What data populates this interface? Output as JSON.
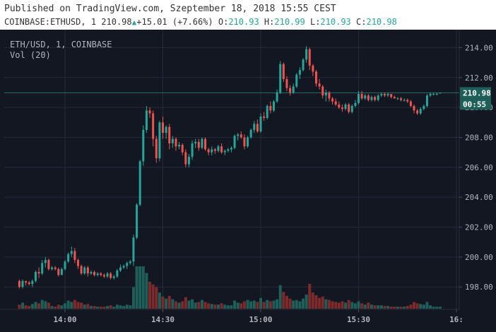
{
  "header": {
    "published": "Published on TradingView.com, Szeptember 18, 2018 15:55 CEST",
    "symbol": "COINBASE:ETHUSD, 1",
    "last": "210.98",
    "change": "+15.01 (+7.66%)",
    "o_label": "O:",
    "o": "210.93",
    "h_label": "H:",
    "h": "210.99",
    "l_label": "L:",
    "l": "210.93",
    "c_label": "C:",
    "c": "210.98"
  },
  "legend": {
    "line1": "ETH/USD, 1, COINBASE",
    "line2": "Vol (20)"
  },
  "colors": {
    "background": "#131722",
    "grid": "#242a38",
    "up": "#26a69a",
    "down": "#ef5350",
    "vol_up": "#1f5f59",
    "vol_down": "#7d2a2b",
    "axis_text": "#b2b5be",
    "last_price_bg": "#1f5f5a",
    "last_price_line": "#2e6e69"
  },
  "chart_data": {
    "type": "candlestick",
    "symbol": "ETH/USD",
    "interval": "1",
    "exchange": "COINBASE",
    "indicator": "Vol (20)",
    "ylim": [
      196.5,
      215.2
    ],
    "y_ticks": [
      "214.00",
      "212.00",
      "210.00",
      "208.00",
      "206.00",
      "204.00",
      "202.00",
      "200.00",
      "198.00"
    ],
    "x_ticks": [
      "14:00",
      "14:30",
      "15:00",
      "15:30",
      "16:"
    ],
    "last_price_label": "210.98",
    "countdown_label": "00:55",
    "candles": [
      [
        "13:46",
        198.4,
        198.5,
        197.9,
        198.0,
        0.6
      ],
      [
        "13:47",
        198.0,
        198.5,
        197.9,
        198.4,
        0.9
      ],
      [
        "13:48",
        198.4,
        198.4,
        198.1,
        198.3,
        0.5
      ],
      [
        "13:49",
        198.3,
        198.4,
        198.1,
        198.2,
        0.4
      ],
      [
        "13:50",
        198.2,
        198.5,
        198.0,
        198.4,
        0.7
      ],
      [
        "13:51",
        198.4,
        199.1,
        198.3,
        199.0,
        1.0
      ],
      [
        "13:52",
        199.0,
        199.3,
        198.6,
        198.9,
        0.8
      ],
      [
        "13:53",
        198.9,
        199.8,
        198.8,
        199.6,
        1.3
      ],
      [
        "13:54",
        199.6,
        200.0,
        199.3,
        199.8,
        1.1
      ],
      [
        "13:55",
        199.8,
        199.9,
        199.1,
        199.2,
        0.9
      ],
      [
        "13:56",
        199.2,
        199.4,
        199.1,
        199.3,
        0.4
      ],
      [
        "13:57",
        199.3,
        199.4,
        199.1,
        199.2,
        0.3
      ],
      [
        "13:58",
        199.2,
        199.3,
        198.7,
        198.8,
        0.6
      ],
      [
        "13:59",
        198.8,
        199.3,
        198.8,
        199.2,
        0.5
      ],
      [
        "14:00",
        199.2,
        199.8,
        199.1,
        199.7,
        0.8
      ],
      [
        "14:01",
        199.7,
        200.3,
        199.6,
        200.2,
        1.2
      ],
      [
        "14:02",
        200.2,
        200.7,
        200.0,
        200.4,
        1.0
      ],
      [
        "14:03",
        200.4,
        200.6,
        199.6,
        199.8,
        1.3
      ],
      [
        "14:04",
        199.8,
        199.9,
        199.2,
        199.4,
        1.0
      ],
      [
        "14:05",
        199.4,
        199.5,
        198.8,
        198.9,
        0.9
      ],
      [
        "14:06",
        198.9,
        199.4,
        198.8,
        199.3,
        0.6
      ],
      [
        "14:07",
        199.3,
        199.4,
        198.7,
        198.9,
        0.7
      ],
      [
        "14:08",
        198.9,
        199.1,
        198.8,
        199.0,
        0.4
      ],
      [
        "14:09",
        199.0,
        199.1,
        198.7,
        198.8,
        0.4
      ],
      [
        "14:10",
        198.8,
        199.0,
        198.7,
        198.9,
        0.3
      ],
      [
        "14:11",
        198.9,
        199.0,
        198.7,
        198.8,
        0.3
      ],
      [
        "14:12",
        198.8,
        198.9,
        198.6,
        198.7,
        0.3
      ],
      [
        "14:13",
        198.7,
        199.0,
        198.6,
        198.9,
        0.4
      ],
      [
        "14:14",
        198.9,
        199.0,
        198.5,
        198.6,
        0.5
      ],
      [
        "14:15",
        198.6,
        198.8,
        198.5,
        198.7,
        0.3
      ],
      [
        "14:16",
        198.7,
        199.2,
        198.6,
        199.1,
        0.6
      ],
      [
        "14:17",
        199.1,
        199.5,
        199.0,
        199.3,
        0.5
      ],
      [
        "14:18",
        199.3,
        199.5,
        199.2,
        199.4,
        0.4
      ],
      [
        "14:19",
        199.4,
        199.7,
        199.2,
        199.6,
        0.6
      ],
      [
        "14:20",
        199.6,
        199.8,
        199.5,
        199.7,
        0.5
      ],
      [
        "14:21",
        199.7,
        201.5,
        199.4,
        201.3,
        3.2
      ],
      [
        "14:22",
        201.3,
        203.6,
        201.2,
        203.5,
        6.3
      ],
      [
        "14:23",
        203.5,
        206.5,
        203.4,
        206.4,
        6.3
      ],
      [
        "14:24",
        206.4,
        208.8,
        206.1,
        208.5,
        6.3
      ],
      [
        "14:25",
        208.5,
        210.1,
        208.3,
        209.8,
        5.3
      ],
      [
        "14:26",
        209.8,
        210.0,
        209.3,
        209.6,
        4.0
      ],
      [
        "14:27",
        209.6,
        209.8,
        207.4,
        207.9,
        3.6
      ],
      [
        "14:28",
        207.9,
        208.1,
        206.3,
        206.6,
        3.2
      ],
      [
        "14:29",
        206.6,
        209.1,
        206.4,
        209.0,
        2.4
      ],
      [
        "14:30",
        209.0,
        209.4,
        207.9,
        208.3,
        1.8
      ],
      [
        "14:31",
        208.3,
        208.8,
        207.9,
        208.7,
        1.5
      ],
      [
        "14:32",
        208.7,
        208.9,
        207.2,
        207.6,
        1.9
      ],
      [
        "14:33",
        207.6,
        208.1,
        207.3,
        207.9,
        1.4
      ],
      [
        "14:34",
        207.9,
        208.0,
        207.1,
        207.4,
        1.1
      ],
      [
        "14:35",
        207.4,
        207.7,
        207.2,
        207.5,
        0.9
      ],
      [
        "14:36",
        207.5,
        207.6,
        206.8,
        207.0,
        1.1
      ],
      [
        "14:37",
        207.0,
        207.2,
        206.0,
        206.2,
        1.7
      ],
      [
        "14:38",
        206.2,
        206.9,
        206.0,
        206.7,
        1.2
      ],
      [
        "14:39",
        206.7,
        207.8,
        206.5,
        207.6,
        1.4
      ],
      [
        "14:40",
        207.6,
        207.9,
        207.3,
        207.7,
        0.9
      ],
      [
        "14:41",
        207.7,
        207.9,
        207.1,
        207.3,
        1.0
      ],
      [
        "14:42",
        207.3,
        208.0,
        207.2,
        207.9,
        1.3
      ],
      [
        "14:43",
        207.9,
        208.0,
        207.1,
        207.2,
        1.0
      ],
      [
        "14:44",
        207.2,
        207.3,
        206.8,
        207.0,
        0.8
      ],
      [
        "14:45",
        207.0,
        207.4,
        206.8,
        207.2,
        0.7
      ],
      [
        "14:46",
        207.2,
        207.3,
        206.9,
        207.1,
        0.6
      ],
      [
        "14:47",
        207.1,
        207.5,
        207.0,
        207.4,
        0.6
      ],
      [
        "14:48",
        207.4,
        207.6,
        206.9,
        207.0,
        0.8
      ],
      [
        "14:49",
        207.0,
        207.2,
        206.8,
        207.1,
        0.6
      ],
      [
        "14:50",
        207.1,
        207.3,
        207.0,
        207.2,
        0.5
      ],
      [
        "14:51",
        207.2,
        207.4,
        207.0,
        207.3,
        0.5
      ],
      [
        "14:52",
        207.3,
        208.2,
        207.2,
        208.1,
        1.2
      ],
      [
        "14:53",
        208.1,
        208.3,
        207.8,
        208.2,
        0.9
      ],
      [
        "14:54",
        208.2,
        208.4,
        207.9,
        208.0,
        0.8
      ],
      [
        "14:55",
        208.0,
        208.2,
        207.2,
        207.4,
        1.1
      ],
      [
        "14:56",
        207.4,
        208.1,
        207.3,
        208.0,
        1.3
      ],
      [
        "14:57",
        208.0,
        208.6,
        207.9,
        208.5,
        1.1
      ],
      [
        "14:58",
        208.5,
        209.1,
        208.3,
        208.9,
        1.2
      ],
      [
        "14:59",
        208.9,
        209.2,
        208.3,
        208.4,
        1.0
      ],
      [
        "15:00",
        208.4,
        209.6,
        208.3,
        209.4,
        1.6
      ],
      [
        "15:01",
        209.4,
        209.7,
        209.1,
        209.3,
        1.0
      ],
      [
        "15:02",
        209.3,
        210.2,
        209.2,
        210.1,
        1.3
      ],
      [
        "15:03",
        210.1,
        210.4,
        209.6,
        209.8,
        1.1
      ],
      [
        "15:04",
        209.8,
        210.5,
        209.7,
        210.4,
        1.2
      ],
      [
        "15:05",
        210.4,
        211.2,
        210.3,
        211.0,
        1.4
      ],
      [
        "15:06",
        211.0,
        213.1,
        210.9,
        212.9,
        3.5
      ],
      [
        "15:07",
        212.9,
        213.0,
        211.7,
        211.9,
        2.5
      ],
      [
        "15:08",
        211.9,
        212.1,
        211.1,
        211.3,
        1.9
      ],
      [
        "15:09",
        211.3,
        211.5,
        210.8,
        211.0,
        1.5
      ],
      [
        "15:10",
        211.0,
        211.6,
        210.9,
        211.4,
        1.2
      ],
      [
        "15:11",
        211.4,
        212.3,
        211.3,
        212.2,
        1.3
      ],
      [
        "15:12",
        212.2,
        212.7,
        211.9,
        212.5,
        1.1
      ],
      [
        "15:13",
        212.5,
        213.3,
        212.4,
        213.2,
        1.5
      ],
      [
        "15:14",
        213.2,
        214.1,
        213.0,
        213.9,
        2.1
      ],
      [
        "15:15",
        213.9,
        214.0,
        212.5,
        212.8,
        3.7
      ],
      [
        "15:16",
        212.8,
        212.9,
        212.1,
        212.4,
        2.4
      ],
      [
        "15:17",
        212.4,
        212.5,
        211.4,
        211.6,
        2.0
      ],
      [
        "15:18",
        211.6,
        211.9,
        211.2,
        211.4,
        1.6
      ],
      [
        "15:19",
        211.4,
        211.5,
        210.6,
        210.8,
        1.8
      ],
      [
        "15:20",
        210.8,
        211.2,
        210.4,
        211.0,
        1.4
      ],
      [
        "15:21",
        211.0,
        211.1,
        210.4,
        210.6,
        1.3
      ],
      [
        "15:22",
        210.6,
        210.7,
        210.2,
        210.4,
        1.1
      ],
      [
        "15:23",
        210.4,
        210.6,
        210.1,
        210.2,
        1.0
      ],
      [
        "15:24",
        210.2,
        210.4,
        209.9,
        210.0,
        0.9
      ],
      [
        "15:25",
        210.0,
        210.2,
        209.7,
        209.9,
        1.1
      ],
      [
        "15:26",
        209.9,
        210.3,
        209.8,
        210.2,
        0.9
      ],
      [
        "15:27",
        210.2,
        210.3,
        209.6,
        209.7,
        1.3
      ],
      [
        "15:28",
        209.7,
        210.2,
        209.6,
        210.1,
        1.0
      ],
      [
        "15:29",
        210.1,
        210.5,
        210.0,
        210.3,
        0.8
      ],
      [
        "15:30",
        210.3,
        211.1,
        210.2,
        210.9,
        1.1
      ],
      [
        "15:31",
        210.9,
        211.1,
        210.5,
        210.6,
        0.8
      ],
      [
        "15:32",
        210.6,
        210.9,
        210.5,
        210.8,
        0.6
      ],
      [
        "15:33",
        210.8,
        210.9,
        210.4,
        210.5,
        0.9
      ],
      [
        "15:34",
        210.5,
        210.8,
        210.4,
        210.7,
        0.6
      ],
      [
        "15:35",
        210.7,
        210.8,
        210.4,
        210.5,
        0.5
      ],
      [
        "15:36",
        210.5,
        210.9,
        210.4,
        210.8,
        0.5
      ],
      [
        "15:37",
        210.8,
        211.0,
        210.7,
        210.9,
        0.5
      ],
      [
        "15:38",
        210.9,
        211.0,
        210.7,
        210.8,
        0.4
      ],
      [
        "15:39",
        210.8,
        211.0,
        210.7,
        210.9,
        0.4
      ],
      [
        "15:40",
        210.9,
        210.9,
        210.6,
        210.7,
        0.3
      ],
      [
        "15:41",
        210.7,
        210.8,
        210.6,
        210.6,
        0.3
      ],
      [
        "15:42",
        210.6,
        210.7,
        210.5,
        210.6,
        0.3
      ],
      [
        "15:43",
        210.6,
        210.7,
        210.4,
        210.5,
        0.3
      ],
      [
        "15:44",
        210.5,
        210.6,
        210.4,
        210.5,
        0.3
      ],
      [
        "15:45",
        210.5,
        210.6,
        210.3,
        210.4,
        0.4
      ],
      [
        "15:46",
        210.4,
        210.5,
        210.0,
        210.1,
        0.6
      ],
      [
        "15:47",
        210.1,
        210.2,
        209.6,
        209.8,
        1.0
      ],
      [
        "15:48",
        209.8,
        209.9,
        209.5,
        209.6,
        0.8
      ],
      [
        "15:49",
        209.6,
        210.0,
        209.5,
        209.9,
        0.7
      ],
      [
        "15:50",
        209.9,
        210.2,
        209.8,
        210.1,
        0.6
      ],
      [
        "15:51",
        210.1,
        210.9,
        210.0,
        210.8,
        1.0
      ],
      [
        "15:52",
        210.8,
        211.0,
        210.7,
        210.9,
        0.5
      ],
      [
        "15:53",
        210.9,
        211.0,
        210.8,
        210.9,
        0.3
      ],
      [
        "15:54",
        210.9,
        211.0,
        210.8,
        210.9,
        0.3
      ],
      [
        "15:55",
        210.93,
        210.99,
        210.93,
        210.98,
        0.3
      ]
    ]
  }
}
